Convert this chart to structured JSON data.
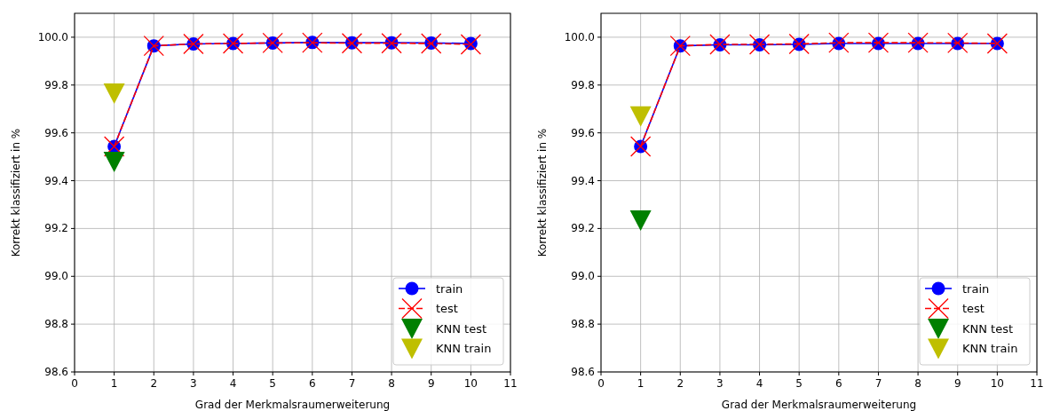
{
  "chart_data": [
    {
      "type": "line",
      "xlabel": "Grad der Merkmalsraumerweiterung",
      "ylabel": "Korrekt klassifiziert in %",
      "xlim": [
        0,
        11
      ],
      "xticks": [
        0,
        1,
        2,
        3,
        4,
        5,
        6,
        7,
        8,
        9,
        10,
        11
      ],
      "ylim": [
        98.6,
        100.1
      ],
      "yticks": [
        {
          "value": 98.6,
          "label": "98.6"
        },
        {
          "value": 98.8,
          "label": "98.8"
        },
        {
          "value": 99.0,
          "label": "99.0"
        },
        {
          "value": 99.2,
          "label": "99.2"
        },
        {
          "value": 99.4,
          "label": "99.4"
        },
        {
          "value": 99.6,
          "label": "99.6"
        },
        {
          "value": 99.8,
          "label": "99.8"
        },
        {
          "value": 100.0,
          "label": "100.0"
        }
      ],
      "grid": true,
      "legend": "bottom right",
      "series": [
        {
          "name": "train",
          "color": "#0000ff",
          "marker": "circle",
          "line_style": "solid",
          "x": [
            1,
            2,
            3,
            4,
            5,
            6,
            7,
            8,
            9,
            10
          ],
          "values": [
            99.543,
            99.964,
            99.972,
            99.974,
            99.976,
            99.978,
            99.977,
            99.977,
            99.976,
            99.974
          ]
        },
        {
          "name": "test",
          "color": "#ff0000",
          "marker": "cross",
          "line_style": "dashed",
          "x": [
            1,
            2,
            3,
            4,
            5,
            6,
            7,
            8,
            9,
            10
          ],
          "values": [
            99.543,
            99.964,
            99.972,
            99.974,
            99.976,
            99.977,
            99.975,
            99.975,
            99.974,
            99.97
          ]
        },
        {
          "name": "KNN test",
          "type": "scatter",
          "color": "#008000",
          "marker": "triangle",
          "x": [
            1
          ],
          "values": [
            99.48
          ]
        },
        {
          "name": "KNN train",
          "type": "scatter",
          "color": "#bfbf00",
          "marker": "triangle",
          "x": [
            1
          ],
          "values": [
            99.766
          ]
        }
      ]
    },
    {
      "type": "line",
      "xlabel": "Grad der Merkmalsraumerweiterung",
      "ylabel": "Korrekt klassifiziert in %",
      "xlim": [
        0,
        11
      ],
      "xticks": [
        0,
        1,
        2,
        3,
        4,
        5,
        6,
        7,
        8,
        9,
        10,
        11
      ],
      "ylim": [
        98.6,
        100.1
      ],
      "yticks": [
        {
          "value": 98.6,
          "label": "98.6"
        },
        {
          "value": 98.8,
          "label": "98.8"
        },
        {
          "value": 99.0,
          "label": "99.0"
        },
        {
          "value": 99.2,
          "label": "99.2"
        },
        {
          "value": 99.4,
          "label": "99.4"
        },
        {
          "value": 99.6,
          "label": "99.6"
        },
        {
          "value": 99.8,
          "label": "99.8"
        },
        {
          "value": 100.0,
          "label": "100.0"
        }
      ],
      "grid": true,
      "legend": "bottom right",
      "series": [
        {
          "name": "train",
          "color": "#0000ff",
          "marker": "circle",
          "line_style": "solid",
          "x": [
            1,
            2,
            3,
            4,
            5,
            6,
            7,
            8,
            9,
            10
          ],
          "values": [
            99.543,
            99.964,
            99.968,
            99.968,
            99.97,
            99.974,
            99.974,
            99.974,
            99.974,
            99.974
          ]
        },
        {
          "name": "test",
          "color": "#ff0000",
          "marker": "cross",
          "line_style": "dashed",
          "x": [
            1,
            2,
            3,
            4,
            5,
            6,
            7,
            8,
            9,
            10
          ],
          "values": [
            99.543,
            99.964,
            99.97,
            99.97,
            99.972,
            99.977,
            99.977,
            99.977,
            99.976,
            99.974
          ]
        },
        {
          "name": "KNN test",
          "type": "scatter",
          "color": "#008000",
          "marker": "triangle",
          "x": [
            1
          ],
          "values": [
            99.235
          ]
        },
        {
          "name": "KNN train",
          "type": "scatter",
          "color": "#bfbf00",
          "marker": "triangle",
          "x": [
            1
          ],
          "values": [
            99.67
          ]
        }
      ]
    }
  ]
}
